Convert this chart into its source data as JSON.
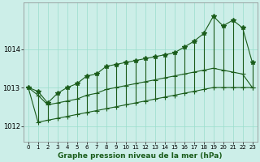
{
  "title": "Graphe pression niveau de la mer (hPa)",
  "bg_color": "#cceee8",
  "grid_color": "#99ddcc",
  "line_color": "#1a5c1a",
  "xlim": [
    -0.5,
    23.5
  ],
  "ylim": [
    1011.6,
    1015.2
  ],
  "yticks": [
    1012,
    1013,
    1014
  ],
  "xticks": [
    0,
    1,
    2,
    3,
    4,
    5,
    6,
    7,
    8,
    9,
    10,
    11,
    12,
    13,
    14,
    15,
    16,
    17,
    18,
    19,
    20,
    21,
    22,
    23
  ],
  "hours": [
    0,
    1,
    2,
    3,
    4,
    5,
    6,
    7,
    8,
    9,
    10,
    11,
    12,
    13,
    14,
    15,
    16,
    17,
    18,
    19,
    20,
    21,
    22,
    23
  ],
  "top_line": [
    1013.0,
    1012.9,
    1012.6,
    1012.85,
    1013.0,
    1013.1,
    1013.3,
    1013.35,
    1013.55,
    1013.6,
    1013.65,
    1013.7,
    1013.75,
    1013.8,
    1013.85,
    1013.9,
    1014.05,
    1014.2,
    1014.4,
    1014.85,
    1014.6,
    1014.75,
    1014.55,
    1013.65
  ],
  "mid_line": [
    1013.0,
    1012.8,
    1012.55,
    1012.6,
    1012.65,
    1012.7,
    1012.8,
    1012.85,
    1012.95,
    1013.0,
    1013.05,
    1013.1,
    1013.15,
    1013.2,
    1013.25,
    1013.3,
    1013.35,
    1013.4,
    1013.45,
    1013.5,
    1013.45,
    1013.4,
    1013.35,
    1013.0
  ],
  "bot_line": [
    1013.0,
    1012.1,
    1012.15,
    1012.2,
    1012.25,
    1012.3,
    1012.35,
    1012.4,
    1012.45,
    1012.5,
    1012.55,
    1012.6,
    1012.65,
    1012.7,
    1012.75,
    1012.8,
    1012.85,
    1012.9,
    1012.95,
    1013.0,
    1013.0,
    1013.0,
    1013.0,
    1013.0
  ]
}
